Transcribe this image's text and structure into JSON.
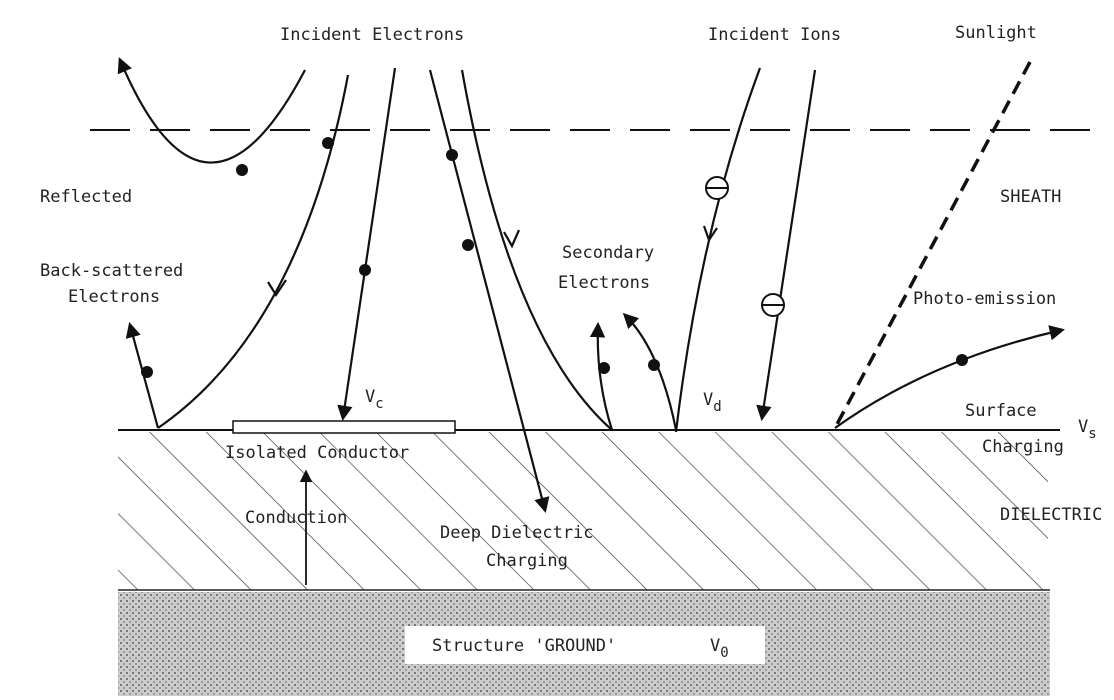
{
  "labels": {
    "incident_electrons": "Incident Electrons",
    "incident_ions": "Incident Ions",
    "sunlight": "Sunlight",
    "reflected": "Reflected",
    "sheath": "SHEATH",
    "back_scattered": [
      "Back-scattered",
      "Electrons"
    ],
    "secondary": [
      "Secondary",
      "Electrons"
    ],
    "photo_emission": "Photo-emission",
    "v_c": {
      "main": "V",
      "sub": "c"
    },
    "v_d": {
      "main": "V",
      "sub": "d"
    },
    "v_s": {
      "main": "V",
      "sub": "s"
    },
    "v_0": {
      "main": "V",
      "sub": "0"
    },
    "surface_charging": [
      "Surface",
      "Charging"
    ],
    "isolated_conductor": "Isolated Conductor",
    "conduction": "Conduction",
    "deep_dielectric": [
      "Deep Dielectric",
      "Charging"
    ],
    "dielectric": "DIELECTRIC",
    "ground": "Structure 'GROUND'"
  }
}
